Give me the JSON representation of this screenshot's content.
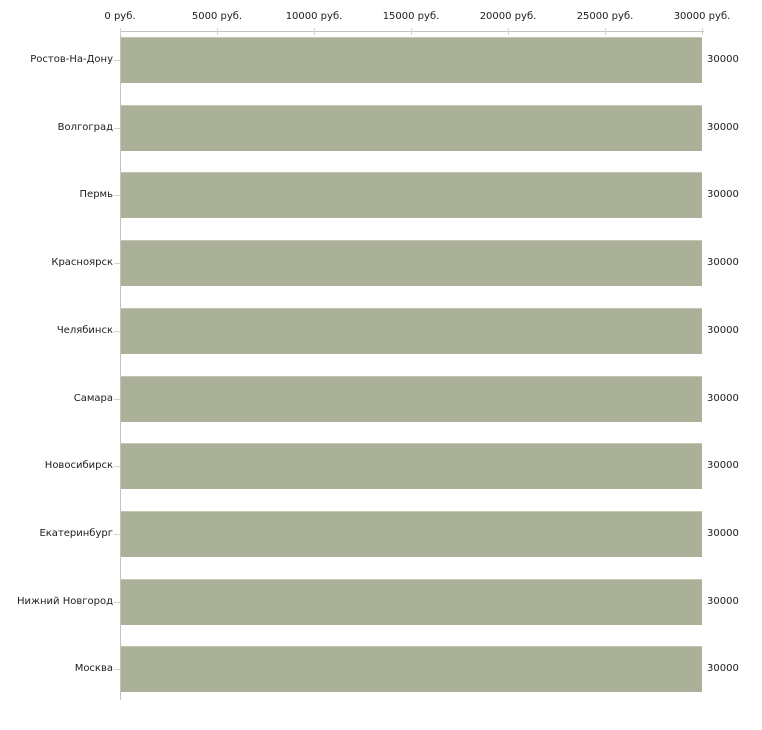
{
  "chart_data": {
    "type": "bar",
    "orientation": "horizontal",
    "title": "",
    "categories": [
      "Ростов-На-Дону",
      "Волгоград",
      "Пермь",
      "Красноярск",
      "Челябинск",
      "Самара",
      "Новосибирск",
      "Екатеринбург",
      "Нижний Новгород",
      "Москва"
    ],
    "values": [
      30000,
      30000,
      30000,
      30000,
      30000,
      30000,
      30000,
      30000,
      30000,
      30000
    ],
    "bar_value_labels": [
      "30000",
      "30000",
      "30000",
      "30000",
      "30000",
      "30000",
      "30000",
      "30000",
      "30000",
      "30000"
    ],
    "x_axis": {
      "position": "top",
      "range": [
        0,
        30000
      ],
      "ticks": [
        0,
        5000,
        10000,
        15000,
        20000,
        25000,
        30000
      ],
      "tick_labels": [
        "0 руб.",
        "5000 руб.",
        "10000 руб.",
        "15000 руб.",
        "20000 руб.",
        "25000 руб.",
        "30000 руб."
      ],
      "unit": "руб."
    },
    "grid": false,
    "legend": "none",
    "colors": {
      "bar": "#abb098",
      "bar_edge_top": "#c4c7b2",
      "axis": "#c3c3be",
      "tick": "#d9d5ba",
      "text": "#1c1c1c",
      "background": "#ffffff"
    }
  }
}
